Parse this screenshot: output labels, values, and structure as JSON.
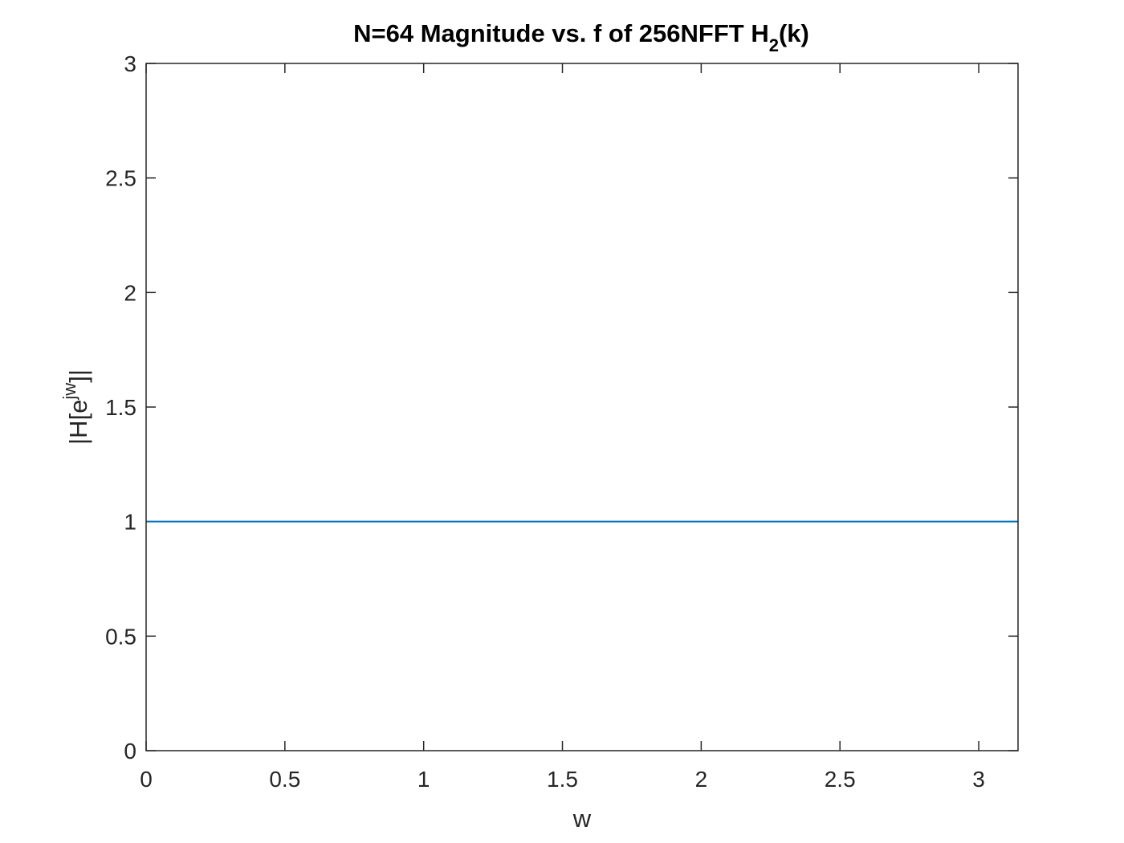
{
  "chart_data": {
    "type": "line",
    "title": {
      "main": "N=64 Magnitude vs. f of 256NFFT H",
      "subscript": "2",
      "suffix": "(k)"
    },
    "xlabel": "w",
    "ylabel": {
      "prefix": "|H[e",
      "superscript": "jw",
      "suffix": "]|"
    },
    "xlim": [
      0,
      3.1416
    ],
    "ylim": [
      0,
      3
    ],
    "xticks": [
      0,
      0.5,
      1,
      1.5,
      2,
      2.5,
      3
    ],
    "xtick_labels": [
      "0",
      "0.5",
      "1",
      "1.5",
      "2",
      "2.5",
      "3"
    ],
    "yticks": [
      0,
      0.5,
      1,
      1.5,
      2,
      2.5,
      3
    ],
    "ytick_labels": [
      "0",
      "0.5",
      "1",
      "1.5",
      "2",
      "2.5",
      "3"
    ],
    "grid": false,
    "series": [
      {
        "color": "#0072bd",
        "x": [
          0,
          0.5,
          1,
          1.5,
          2,
          2.5,
          3,
          3.1416
        ],
        "y": [
          1,
          1,
          1,
          1,
          1,
          1,
          1,
          1
        ]
      }
    ]
  }
}
